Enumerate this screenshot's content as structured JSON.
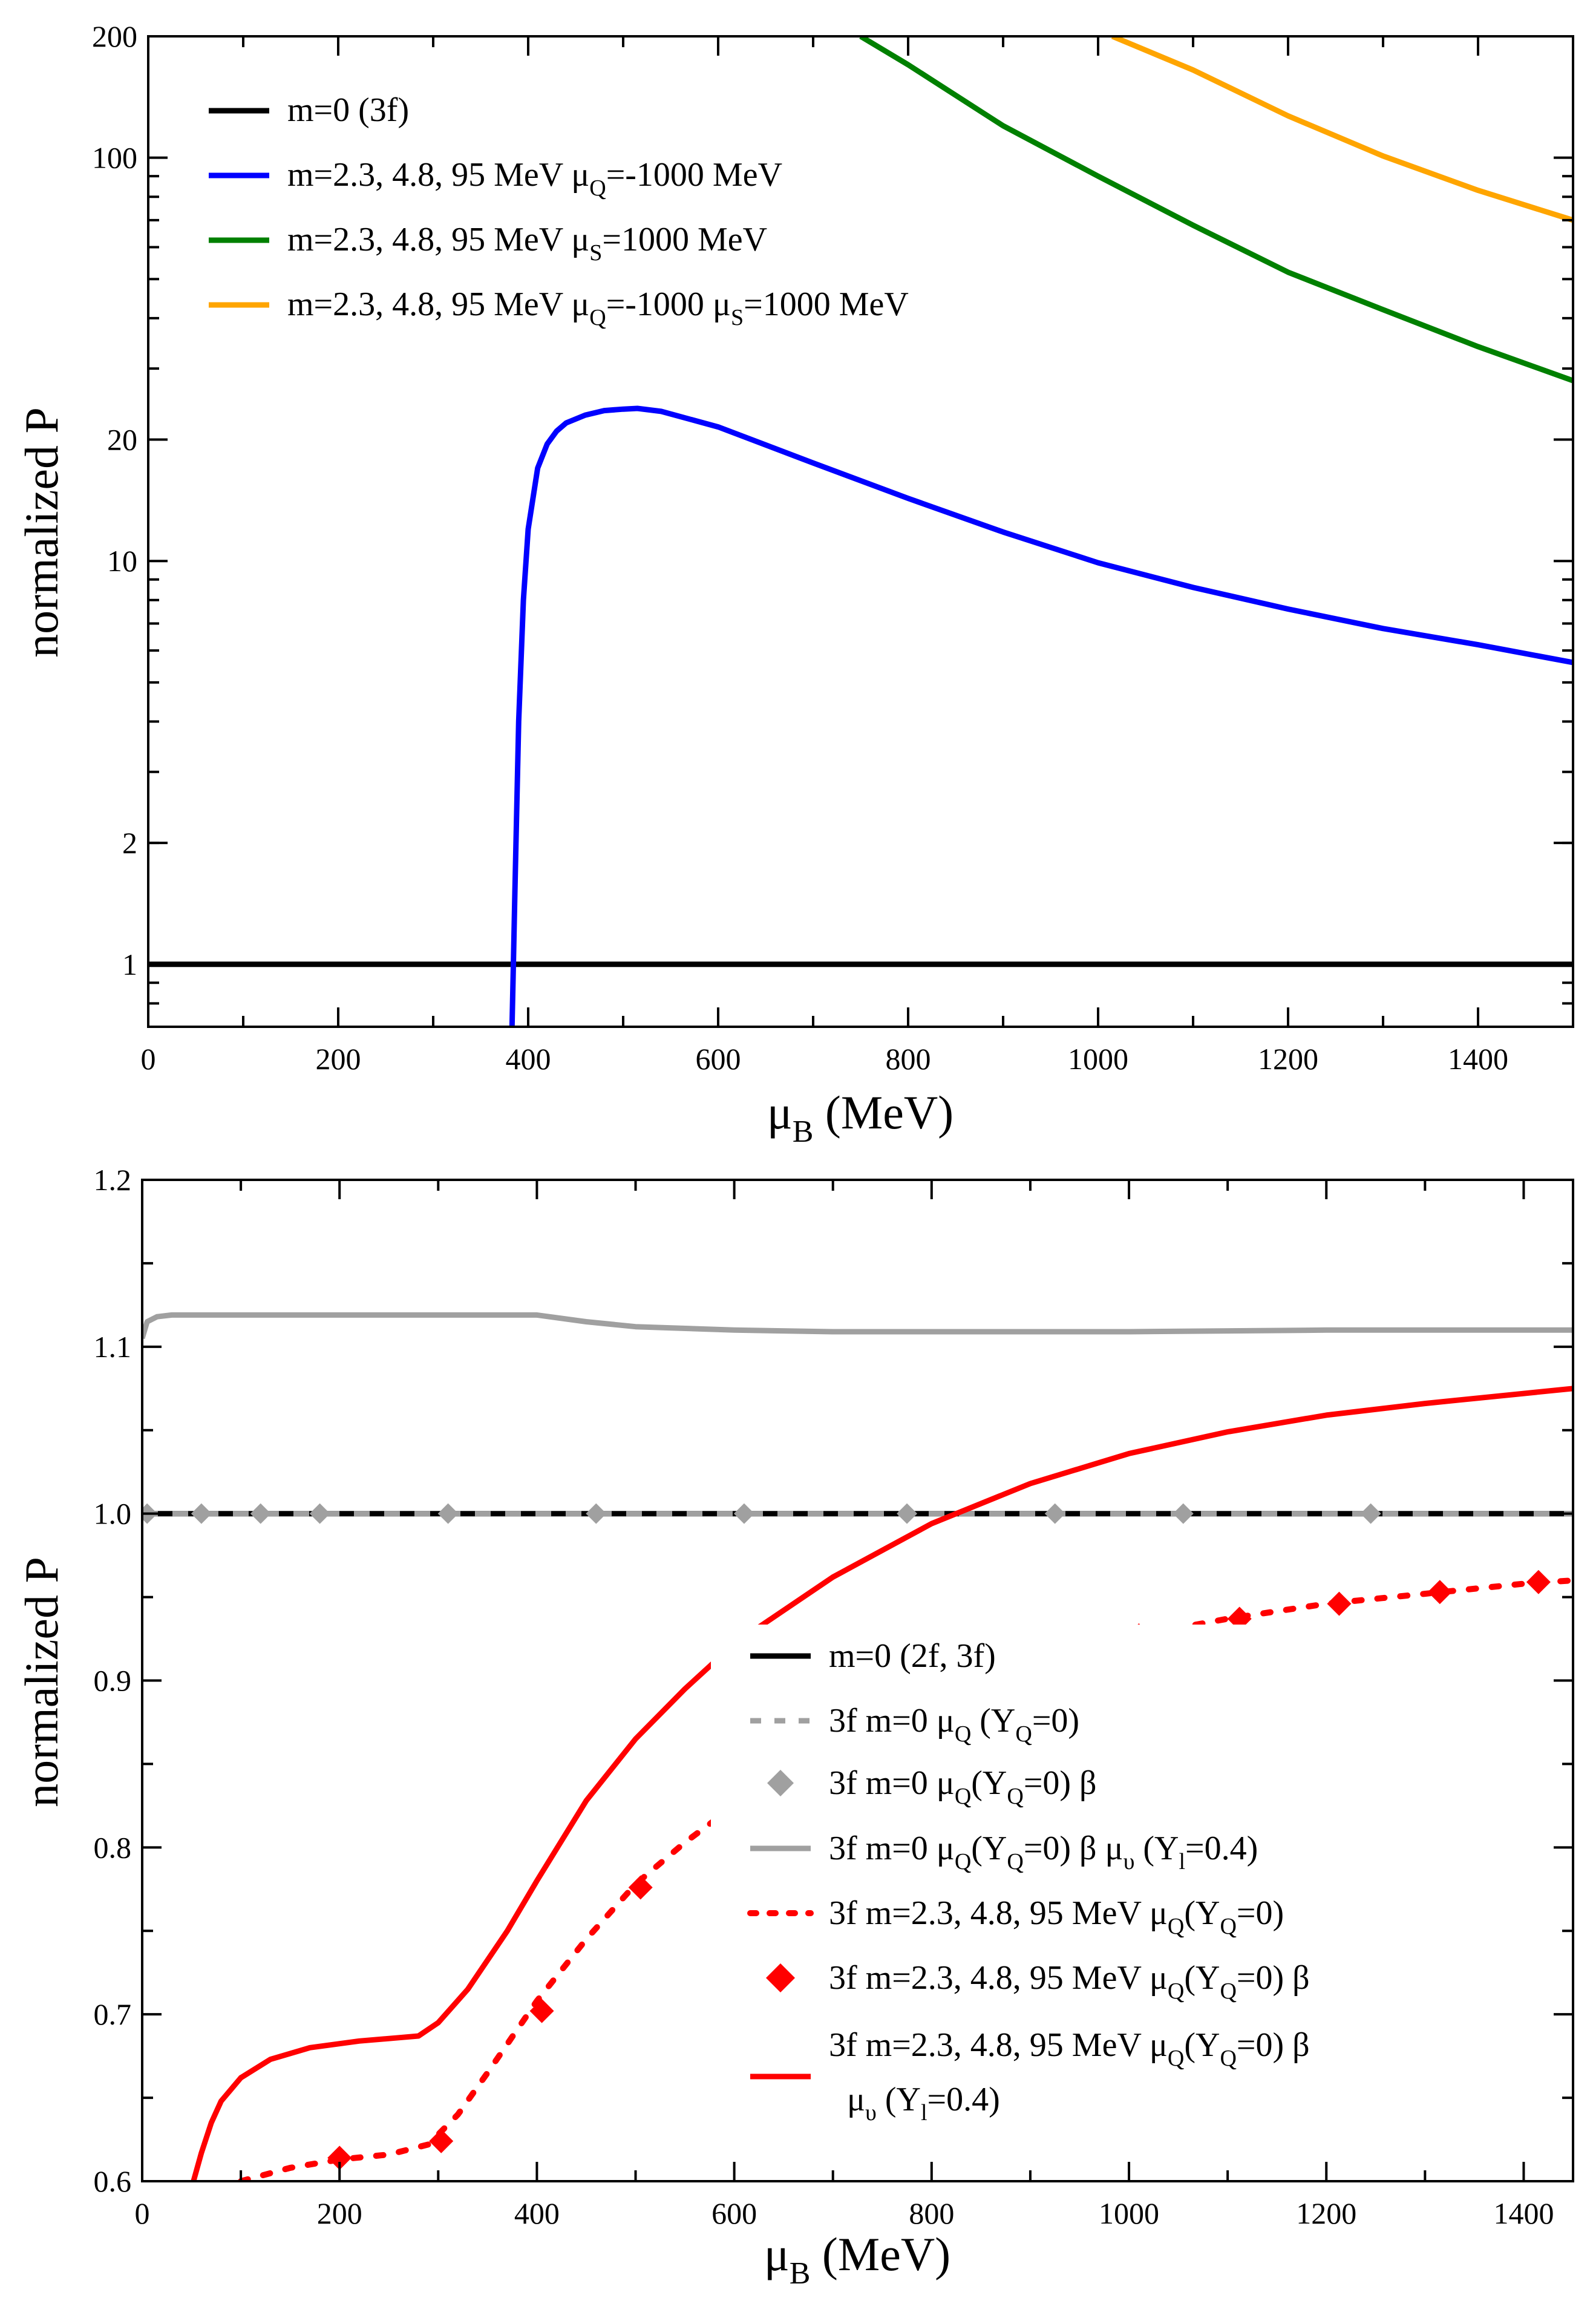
{
  "chart_data": [
    {
      "type": "line",
      "xlabel": "μ_B (MeV)",
      "ylabel": "normalized P",
      "xlim": [
        0,
        1500
      ],
      "ylim": [
        0.7,
        200
      ],
      "yscale": "log",
      "xticks": [
        "0",
        "200",
        "400",
        "600",
        "800",
        "1000",
        "1200",
        "1400"
      ],
      "yticks": [
        {
          "v": 1,
          "label": "1"
        },
        {
          "v": 2,
          "label": "2"
        },
        {
          "v": 10,
          "label": "10"
        },
        {
          "v": 20,
          "label": "20"
        },
        {
          "v": 100,
          "label": "100"
        },
        {
          "v": 200,
          "label": "200"
        }
      ],
      "legend_position": "top-left",
      "series": [
        {
          "key": "a1",
          "name": "m=0 (3f)",
          "color": "#000000",
          "x": [
            0,
            1500
          ],
          "y": [
            1,
            1
          ]
        },
        {
          "key": "a2",
          "name": "m=2.3, 4.8, 95 MeV μ_Q=-1000 MeV",
          "color": "#0000ff",
          "x": [
            383,
            384,
            386,
            390,
            395,
            400,
            410,
            420,
            430,
            440,
            460,
            480,
            500,
            515,
            540,
            600,
            700,
            800,
            900,
            1000,
            1100,
            1200,
            1300,
            1400,
            1500
          ],
          "y": [
            0.7,
            0.9,
            1.5,
            4.0,
            8.0,
            12.0,
            17.0,
            19.5,
            21.0,
            22.0,
            23.0,
            23.6,
            23.8,
            23.9,
            23.5,
            21.5,
            17.5,
            14.3,
            11.8,
            9.9,
            8.6,
            7.6,
            6.8,
            6.2,
            5.6
          ]
        },
        {
          "key": "a3",
          "name": "m=2.3, 4.8, 95 MeV μ_S=1000 MeV",
          "color": "#008000",
          "x": [
            750,
            800,
            900,
            1000,
            1100,
            1200,
            1300,
            1400,
            1500
          ],
          "y": [
            200,
            170,
            120,
            90,
            68,
            52,
            42,
            34,
            28
          ]
        },
        {
          "key": "a4",
          "name": "m=2.3, 4.8, 95 MeV μ_Q=-1000 μ_S=1000 MeV",
          "color": "#ffa500",
          "x": [
            1015,
            1100,
            1200,
            1300,
            1400,
            1500
          ],
          "y": [
            200,
            165,
            127,
            101,
            83,
            70
          ]
        }
      ]
    },
    {
      "type": "line",
      "xlabel": "μ_B (MeV)",
      "ylabel": "normalized P",
      "xlim": [
        0,
        1450
      ],
      "ylim": [
        0.6,
        1.2
      ],
      "xticks": [
        "0",
        "200",
        "400",
        "600",
        "800",
        "1000",
        "1200",
        "1400"
      ],
      "yticks": [
        {
          "v": 0.6,
          "label": "0.6"
        },
        {
          "v": 0.7,
          "label": "0.7"
        },
        {
          "v": 0.8,
          "label": "0.8"
        },
        {
          "v": 0.9,
          "label": "0.9"
        },
        {
          "v": 1.0,
          "label": "1.0"
        },
        {
          "v": 1.1,
          "label": "1.1"
        },
        {
          "v": 1.2,
          "label": "1.2"
        }
      ],
      "legend_position": "bottom-right",
      "series": [
        {
          "key": "b1",
          "name": "m=0 (2f, 3f)",
          "color": "#000000",
          "x": [
            0,
            1450
          ],
          "y": [
            1.0,
            1.0
          ]
        },
        {
          "key": "b2",
          "name": "3f m=0 μ_Q (Y_Q=0)",
          "color": "#a0a0a0",
          "x": [
            0,
            1450
          ],
          "y": [
            1.0,
            1.0
          ]
        },
        {
          "key": "b3",
          "name": "3f m=0 μ_Q(Y_Q=0) β",
          "color": "#a0a0a0",
          "x": [
            5,
            60,
            120,
            180,
            310,
            460,
            610,
            775,
            925,
            1055,
            1245
          ],
          "y": [
            1.0,
            1.0,
            1.0,
            1.0,
            1.0,
            1.0,
            1.0,
            1.0,
            1.0,
            1.0,
            1.0
          ]
        },
        {
          "key": "b4",
          "name": "3f m=0 μ_Q(Y_Q=0) β μ_υ (Y_l=0.4)",
          "color": "#a0a0a0",
          "x": [
            0,
            5,
            15,
            30,
            100,
            200,
            300,
            400,
            450,
            500,
            600,
            700,
            800,
            1000,
            1200,
            1450
          ],
          "y": [
            1.105,
            1.115,
            1.118,
            1.119,
            1.119,
            1.119,
            1.119,
            1.119,
            1.115,
            1.112,
            1.11,
            1.109,
            1.109,
            1.109,
            1.11,
            1.11
          ]
        },
        {
          "key": "b5",
          "name": "3f m=2.3, 4.8, 95 MeV μ_Q(Y_Q=0)",
          "color": "#ff0000",
          "x": [
            100,
            150,
            200,
            250,
            290,
            320,
            350,
            400,
            450,
            500,
            550,
            600,
            650,
            700,
            750,
            800,
            900,
            1000,
            1100,
            1200,
            1300,
            1400,
            1450
          ],
          "y": [
            0.6,
            0.608,
            0.613,
            0.616,
            0.622,
            0.64,
            0.665,
            0.708,
            0.745,
            0.778,
            0.803,
            0.825,
            0.842,
            0.858,
            0.873,
            0.887,
            0.91,
            0.926,
            0.937,
            0.946,
            0.952,
            0.958,
            0.96
          ]
        },
        {
          "key": "b6",
          "name": "3f m=2.3, 4.8, 95 MeV μ_Q(Y_Q=0) β",
          "color": "#ff0000",
          "x": [
            200,
            303,
            405,
            505,
            810,
            910,
            1010,
            1112,
            1213,
            1315,
            1415
          ],
          "y": [
            0.614,
            0.624,
            0.702,
            0.776,
            0.893,
            0.913,
            0.927,
            0.937,
            0.946,
            0.953,
            0.959
          ]
        },
        {
          "key": "b7",
          "name": "3f m=2.3, 4.8, 95 MeV μ_Q(Y_Q=0) β μ_υ (Y_l=0.4)",
          "color": "#ff0000",
          "x": [
            52,
            60,
            70,
            80,
            100,
            130,
            170,
            220,
            260,
            280,
            300,
            330,
            370,
            400,
            450,
            500,
            550,
            600,
            700,
            800,
            900,
            1000,
            1100,
            1200,
            1300,
            1400,
            1450
          ],
          "y": [
            0.6,
            0.617,
            0.635,
            0.648,
            0.662,
            0.673,
            0.68,
            0.684,
            0.686,
            0.687,
            0.695,
            0.715,
            0.75,
            0.78,
            0.828,
            0.865,
            0.895,
            0.922,
            0.962,
            0.994,
            1.018,
            1.036,
            1.049,
            1.059,
            1.066,
            1.072,
            1.075
          ]
        }
      ]
    }
  ]
}
